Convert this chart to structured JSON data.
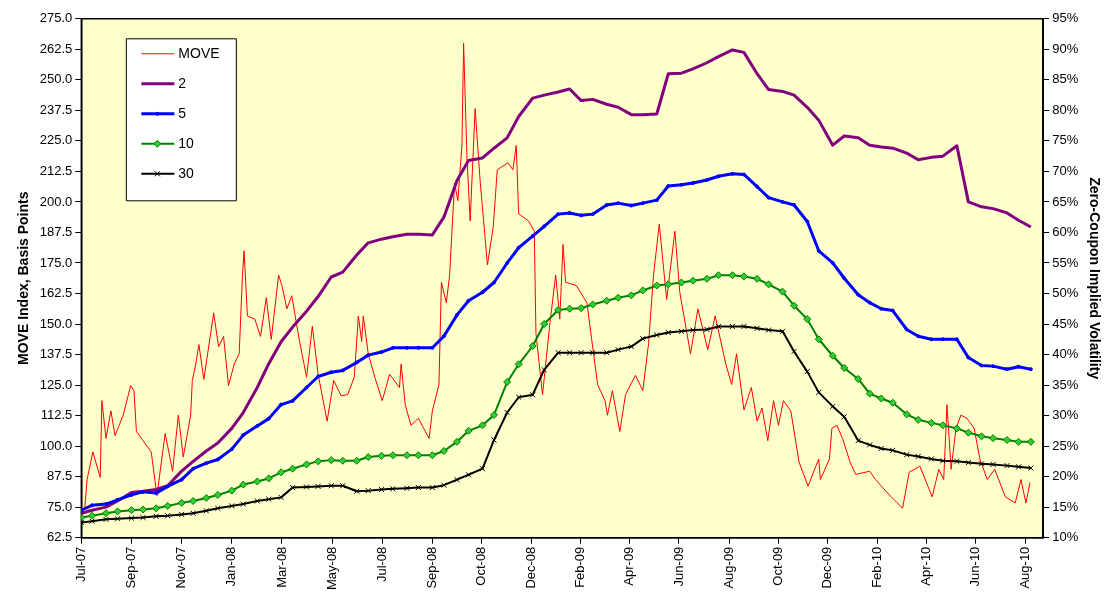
{
  "chart_data": {
    "type": "line",
    "ylabel": "MOVE Index, Basis Points",
    "y2label": "Zero-Coupon Implied Volatility",
    "xlim": [
      "2007-07-02",
      "2010-09-14"
    ],
    "xticks": [
      {
        "value": "2007-07-02",
        "label": "Jul-07"
      },
      {
        "value": "2007-09-01",
        "label": "Sep-07"
      },
      {
        "value": "2007-11-01",
        "label": "Nov-07"
      },
      {
        "value": "2008-01-01",
        "label": "Jan-08"
      },
      {
        "value": "2008-03-02",
        "label": "Mar-08"
      },
      {
        "value": "2008-05-02",
        "label": "May-08"
      },
      {
        "value": "2008-07-02",
        "label": "Jul-08"
      },
      {
        "value": "2008-09-01",
        "label": "Sep-08"
      },
      {
        "value": "2008-10-31",
        "label": "Oct-08"
      },
      {
        "value": "2008-12-31",
        "label": "Dec-08"
      },
      {
        "value": "2009-02-28",
        "label": "Feb-09"
      },
      {
        "value": "2009-04-29",
        "label": "Apr-09"
      },
      {
        "value": "2009-06-28",
        "label": "Jun-09"
      },
      {
        "value": "2009-08-28",
        "label": "Aug-09"
      },
      {
        "value": "2009-10-27",
        "label": "Oct-09"
      },
      {
        "value": "2009-12-26",
        "label": "Dec-09"
      },
      {
        "value": "2010-02-24",
        "label": "Feb-10"
      },
      {
        "value": "2010-04-25",
        "label": "Apr-10"
      },
      {
        "value": "2010-06-24",
        "label": "Jun-10"
      },
      {
        "value": "2010-08-23",
        "label": "Aug-10"
      }
    ],
    "ylim": [
      62.5,
      275
    ],
    "yticks": [
      {
        "value": 62.5,
        "label": "62.5"
      },
      {
        "value": 75,
        "label": "75.0"
      },
      {
        "value": 87.5,
        "label": "87.5"
      },
      {
        "value": 100,
        "label": "100.0"
      },
      {
        "value": 112.5,
        "label": "112.5"
      },
      {
        "value": 125,
        "label": "125.0"
      },
      {
        "value": 137.5,
        "label": "137.5"
      },
      {
        "value": 150,
        "label": "150.0"
      },
      {
        "value": 162.5,
        "label": "162.5"
      },
      {
        "value": 175,
        "label": "175.0"
      },
      {
        "value": 187.5,
        "label": "187.5"
      },
      {
        "value": 200,
        "label": "200.0"
      },
      {
        "value": 212.5,
        "label": "212.5"
      },
      {
        "value": 225,
        "label": "225.0"
      },
      {
        "value": 237.5,
        "label": "237.5"
      },
      {
        "value": 250,
        "label": "250.0"
      },
      {
        "value": 262.5,
        "label": "262.5"
      },
      {
        "value": 275,
        "label": "275.0"
      }
    ],
    "y2lim": [
      10,
      95
    ],
    "y2ticks": [
      {
        "value": 10,
        "label": "10%"
      },
      {
        "value": 15,
        "label": "15%"
      },
      {
        "value": 20,
        "label": "20%"
      },
      {
        "value": 25,
        "label": "25%"
      },
      {
        "value": 30,
        "label": "30%"
      },
      {
        "value": 35,
        "label": "35%"
      },
      {
        "value": 40,
        "label": "40%"
      },
      {
        "value": 45,
        "label": "45%"
      },
      {
        "value": 50,
        "label": "50%"
      },
      {
        "value": 55,
        "label": "55%"
      },
      {
        "value": 60,
        "label": "60%"
      },
      {
        "value": 65,
        "label": "65%"
      },
      {
        "value": 70,
        "label": "70%"
      },
      {
        "value": 75,
        "label": "75%"
      },
      {
        "value": 80,
        "label": "80%"
      },
      {
        "value": 85,
        "label": "85%"
      },
      {
        "value": 90,
        "label": "90%"
      },
      {
        "value": 95,
        "label": "95%"
      }
    ],
    "legend": "top left",
    "grid": false,
    "x": [
      "2007-07-02",
      "2007-07-15",
      "2007-08-01",
      "2007-08-15",
      "2007-09-01",
      "2007-09-15",
      "2007-10-01",
      "2007-10-15",
      "2007-11-01",
      "2007-11-15",
      "2007-12-01",
      "2007-12-15",
      "2008-01-01",
      "2008-01-15",
      "2008-02-01",
      "2008-02-15",
      "2008-03-01",
      "2008-03-15",
      "2008-04-01",
      "2008-04-15",
      "2008-05-01",
      "2008-05-15",
      "2008-06-01",
      "2008-06-15",
      "2008-07-01",
      "2008-07-15",
      "2008-08-01",
      "2008-08-15",
      "2008-09-01",
      "2008-09-15",
      "2008-10-01",
      "2008-10-15",
      "2008-11-01",
      "2008-11-15",
      "2008-12-01",
      "2008-12-15",
      "2009-01-01",
      "2009-01-15",
      "2009-02-01",
      "2009-02-15",
      "2009-03-01",
      "2009-03-15",
      "2009-04-01",
      "2009-04-15",
      "2009-05-01",
      "2009-05-15",
      "2009-06-01",
      "2009-06-15",
      "2009-07-01",
      "2009-07-15",
      "2009-08-01",
      "2009-08-15",
      "2009-09-01",
      "2009-09-15",
      "2009-10-01",
      "2009-10-15",
      "2009-11-01",
      "2009-11-15",
      "2009-12-01",
      "2009-12-15",
      "2010-01-01",
      "2010-01-15",
      "2010-02-01",
      "2010-02-15",
      "2010-03-01",
      "2010-03-15",
      "2010-04-01",
      "2010-04-15",
      "2010-05-01",
      "2010-05-15",
      "2010-06-01",
      "2010-06-15",
      "2010-07-01",
      "2010-07-15",
      "2010-08-01",
      "2010-08-15",
      "2010-08-30"
    ],
    "series": [
      {
        "name": "MOVE",
        "color": "#ff0000",
        "marker": "none",
        "x": [
          "2007-07-06",
          "2007-07-09",
          "2007-07-16",
          "2007-07-25",
          "2007-07-27",
          "2007-08-01",
          "2007-08-07",
          "2007-08-12",
          "2007-08-22",
          "2007-08-31",
          "2007-09-04",
          "2007-09-07",
          "2007-09-25",
          "2007-10-02",
          "2007-10-12",
          "2007-10-21",
          "2007-10-28",
          "2007-11-03",
          "2007-11-12",
          "2007-11-14",
          "2007-11-18",
          "2007-11-22",
          "2007-11-28",
          "2007-12-10",
          "2007-12-16",
          "2007-12-22",
          "2007-12-28",
          "2008-01-04",
          "2008-01-10",
          "2008-01-14",
          "2008-01-16",
          "2008-01-20",
          "2008-01-29",
          "2008-02-05",
          "2008-02-12",
          "2008-02-18",
          "2008-02-27",
          "2008-03-02",
          "2008-03-08",
          "2008-03-14",
          "2008-03-23",
          "2008-04-01",
          "2008-04-08",
          "2008-04-15",
          "2008-04-26",
          "2008-05-04",
          "2008-05-13",
          "2008-05-21",
          "2008-05-29",
          "2008-06-03",
          "2008-06-07",
          "2008-06-09",
          "2008-06-15",
          "2008-06-23",
          "2008-07-02",
          "2008-07-11",
          "2008-07-23",
          "2008-07-25",
          "2008-07-30",
          "2008-08-06",
          "2008-08-15",
          "2008-08-28",
          "2008-09-01",
          "2008-09-09",
          "2008-09-12",
          "2008-09-18",
          "2008-09-22",
          "2008-09-28",
          "2008-10-02",
          "2008-10-07",
          "2008-10-09",
          "2008-10-13",
          "2008-10-17",
          "2008-10-23",
          "2008-10-29",
          "2008-11-07",
          "2008-11-14",
          "2008-11-19",
          "2008-12-02",
          "2008-12-08",
          "2008-12-12",
          "2008-12-15",
          "2008-12-27",
          "2009-01-03",
          "2009-01-05",
          "2009-01-13",
          "2009-01-22",
          "2009-01-29",
          "2009-02-03",
          "2009-02-07",
          "2009-02-10",
          "2009-02-23",
          "2009-03-08",
          "2009-03-21",
          "2009-03-30",
          "2009-04-02",
          "2009-04-08",
          "2009-04-17",
          "2009-04-24",
          "2009-05-06",
          "2009-05-15",
          "2009-05-22",
          "2009-05-28",
          "2009-06-04",
          "2009-06-13",
          "2009-06-23",
          "2009-06-29",
          "2009-07-12",
          "2009-07-21",
          "2009-08-02",
          "2009-08-11",
          "2009-08-24",
          "2009-08-31",
          "2009-09-06",
          "2009-09-15",
          "2009-09-24",
          "2009-10-01",
          "2009-10-07",
          "2009-10-14",
          "2009-10-21",
          "2009-10-27",
          "2009-11-02",
          "2009-11-11",
          "2009-11-21",
          "2009-12-02",
          "2009-12-15",
          "2009-12-17",
          "2009-12-28",
          "2009-12-31",
          "2010-01-06",
          "2010-01-13",
          "2010-01-22",
          "2010-01-29",
          "2010-02-15",
          "2010-02-22",
          "2010-03-13",
          "2010-03-27",
          "2010-04-04",
          "2010-04-17",
          "2010-05-02",
          "2010-05-10",
          "2010-05-16",
          "2010-05-20",
          "2010-05-25",
          "2010-05-31",
          "2010-06-06",
          "2010-06-13",
          "2010-06-22",
          "2010-06-29",
          "2010-07-08",
          "2010-07-17",
          "2010-07-30",
          "2010-08-11",
          "2010-08-18",
          "2010-08-24",
          "2010-08-29"
        ],
        "values": [
          73.8,
          86.3,
          97.6,
          87.2,
          118.6,
          103.1,
          114.4,
          104.3,
          112.7,
          124.8,
          122.7,
          106.0,
          97.6,
          79.7,
          105.2,
          89.7,
          112.7,
          95.5,
          112.7,
          126.9,
          133.2,
          141.6,
          127.3,
          154.5,
          140.7,
          144.9,
          124.8,
          133.6,
          137.8,
          170.0,
          180.0,
          153.3,
          152.0,
          144.9,
          160.8,
          143.7,
          170.0,
          165.8,
          156.2,
          161.6,
          143.7,
          128.2,
          149.1,
          129.4,
          110.2,
          126.9,
          120.6,
          121.1,
          128.2,
          153.3,
          142.8,
          153.3,
          137.8,
          128.2,
          118.6,
          129.4,
          124.0,
          133.6,
          116.9,
          108.5,
          111.4,
          103.1,
          114.4,
          125.2,
          167.1,
          158.7,
          170.0,
          207.7,
          200.5,
          223.1,
          265.0,
          218.9,
          192.2,
          238.2,
          209.0,
          174.2,
          189.7,
          213.2,
          216.0,
          213.2,
          223.1,
          195.1,
          192.2,
          188.0,
          146.2,
          121.1,
          150.3,
          170.0,
          152.0,
          182.6,
          167.1,
          165.8,
          158.7,
          125.2,
          118.6,
          112.7,
          122.7,
          106.0,
          121.1,
          129.0,
          122.7,
          142.0,
          170.0,
          190.9,
          160.0,
          188.0,
          162.9,
          137.8,
          156.2,
          139.5,
          153.3,
          133.6,
          125.2,
          137.8,
          114.8,
          124.0,
          110.2,
          115.6,
          102.2,
          118.6,
          108.5,
          118.6,
          114.4,
          93.5,
          83.6,
          94.7,
          86.3,
          94.7,
          107.3,
          108.5,
          103.1,
          93.5,
          88.4,
          89.7,
          86.3,
          79.2,
          74.6,
          89.3,
          91.8,
          79.2,
          90.5,
          86.3,
          116.9,
          90.5,
          107.3,
          112.7,
          111.4,
          107.3,
          94.7,
          86.3,
          90.5,
          79.2,
          76.7,
          86.3,
          76.7,
          85.1
        ]
      },
      {
        "name": "2",
        "color": "#800080",
        "axis": "y2",
        "marker": "none",
        "values": [
          14.0,
          14.5,
          15.0,
          16.0,
          17.4,
          17.6,
          17.9,
          18.5,
          20.9,
          22.5,
          24.2,
          25.5,
          27.9,
          30.5,
          34.6,
          38.5,
          42.1,
          44.5,
          47.1,
          49.5,
          52.7,
          53.5,
          56.3,
          58.3,
          58.9,
          59.3,
          59.7,
          59.7,
          59.6,
          62.5,
          68.5,
          71.8,
          72.2,
          73.8,
          75.5,
          79.0,
          82.0,
          82.5,
          83.0,
          83.5,
          81.6,
          81.8,
          81.0,
          80.5,
          79.3,
          79.3,
          79.4,
          86.0,
          86.1,
          86.8,
          87.8,
          88.8,
          89.9,
          89.5,
          86.0,
          83.4,
          83.1,
          82.5,
          80.5,
          78.4,
          74.3,
          75.8,
          75.5,
          74.3,
          74.0,
          73.8,
          73.0,
          71.9,
          72.3,
          72.5,
          74.2,
          65.0,
          64.2,
          63.9,
          63.2,
          62.0,
          60.9
        ]
      },
      {
        "name": "5",
        "color": "#0000ff",
        "axis": "y2",
        "marker": "circle",
        "values": [
          14.5,
          15.3,
          15.5,
          16.2,
          17.0,
          17.5,
          17.3,
          18.4,
          19.5,
          21.3,
          22.2,
          22.8,
          24.5,
          26.8,
          28.3,
          29.5,
          31.8,
          32.4,
          34.6,
          36.4,
          37.1,
          37.4,
          38.7,
          39.9,
          40.4,
          41.1,
          41.1,
          41.1,
          41.1,
          43.0,
          46.5,
          48.8,
          50.2,
          51.8,
          55.0,
          57.5,
          59.4,
          61.0,
          63.0,
          63.2,
          62.8,
          63.0,
          64.5,
          64.8,
          64.4,
          64.8,
          65.3,
          67.6,
          67.8,
          68.1,
          68.6,
          69.2,
          69.6,
          69.5,
          67.5,
          65.7,
          65.0,
          64.5,
          61.8,
          57.0,
          55.0,
          52.5,
          49.8,
          48.5,
          47.5,
          47.2,
          44.1,
          43.0,
          42.5,
          42.5,
          42.5,
          39.5,
          38.2,
          38.1,
          37.6,
          38.0,
          37.6
        ]
      },
      {
        "name": "10",
        "color": "#008000",
        "axis": "y2",
        "marker": "diamond",
        "values": [
          13.3,
          13.6,
          14.0,
          14.3,
          14.5,
          14.6,
          14.8,
          15.2,
          15.7,
          16.0,
          16.5,
          17.0,
          17.7,
          18.7,
          19.2,
          19.7,
          20.7,
          21.3,
          22.0,
          22.5,
          22.7,
          22.6,
          22.6,
          23.2,
          23.4,
          23.5,
          23.5,
          23.5,
          23.5,
          24.2,
          25.7,
          27.5,
          28.4,
          30.1,
          35.5,
          38.4,
          41.4,
          45.0,
          47.3,
          47.5,
          47.6,
          48.2,
          48.8,
          49.3,
          49.7,
          50.5,
          51.3,
          51.5,
          51.8,
          52.1,
          52.4,
          53.0,
          53.0,
          52.8,
          52.4,
          51.5,
          50.3,
          48.0,
          45.8,
          42.5,
          39.8,
          37.8,
          36.0,
          33.6,
          32.8,
          32.1,
          30.2,
          29.3,
          28.8,
          28.4,
          27.9,
          27.2,
          26.6,
          26.3,
          26.0,
          25.7,
          25.7
        ]
      },
      {
        "name": "30",
        "color": "#000000",
        "axis": "y2",
        "marker": "cross",
        "values": [
          12.5,
          12.7,
          13.0,
          13.1,
          13.2,
          13.3,
          13.5,
          13.6,
          13.8,
          14.0,
          14.4,
          14.8,
          15.2,
          15.5,
          16.0,
          16.3,
          16.6,
          18.2,
          18.3,
          18.4,
          18.5,
          18.5,
          17.6,
          17.7,
          17.9,
          18.0,
          18.1,
          18.2,
          18.2,
          18.6,
          19.5,
          20.3,
          21.3,
          26.0,
          30.5,
          33.0,
          33.4,
          37.5,
          40.3,
          40.3,
          40.3,
          40.3,
          40.3,
          40.8,
          41.3,
          42.6,
          43.2,
          43.6,
          43.8,
          44.0,
          44.1,
          44.6,
          44.6,
          44.6,
          44.3,
          44.0,
          43.8,
          40.5,
          37.2,
          33.8,
          31.5,
          29.8,
          25.9,
          25.2,
          24.6,
          24.3,
          23.6,
          23.3,
          22.9,
          22.6,
          22.5,
          22.3,
          22.1,
          22.0,
          21.8,
          21.6,
          21.4
        ]
      }
    ]
  }
}
